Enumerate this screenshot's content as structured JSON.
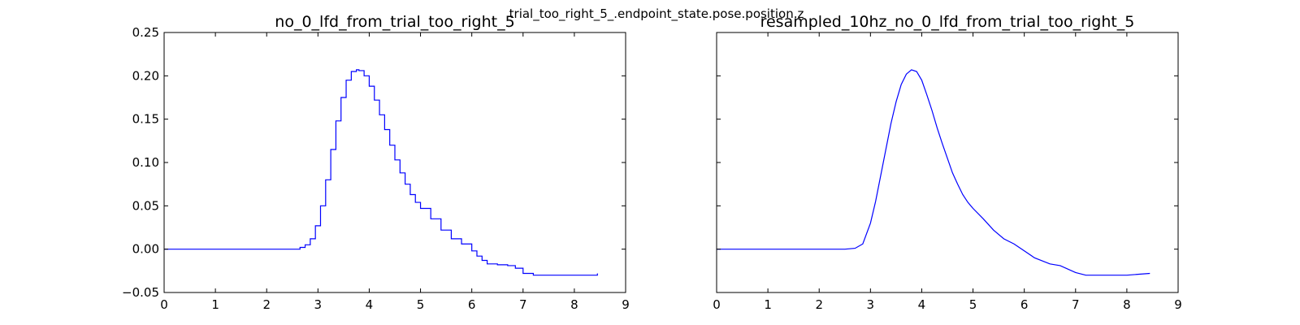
{
  "figure": {
    "suptitle": "trial_too_right_5_.endpoint_state.pose.position.z"
  },
  "chart_data": [
    {
      "type": "line",
      "title": "no_0_lfd_from_trial_too_right_5",
      "xlabel": "",
      "ylabel": "",
      "xlim": [
        0,
        9
      ],
      "ylim": [
        -0.05,
        0.25
      ],
      "xticks": [
        "0",
        "1",
        "2",
        "3",
        "4",
        "5",
        "6",
        "7",
        "8",
        "9"
      ],
      "yticks": [
        "−0.05",
        "0.00",
        "0.05",
        "0.10",
        "0.15",
        "0.20",
        "0.25"
      ],
      "show_yticklabels": true,
      "step": true,
      "grid": false,
      "series": [
        {
          "color": "#0000ff",
          "x": [
            0.0,
            0.5,
            1.0,
            1.5,
            2.0,
            2.3,
            2.5,
            2.65,
            2.75,
            2.85,
            2.95,
            3.05,
            3.15,
            3.25,
            3.35,
            3.45,
            3.55,
            3.65,
            3.75,
            3.8,
            3.9,
            4.0,
            4.1,
            4.2,
            4.3,
            4.4,
            4.5,
            4.6,
            4.7,
            4.8,
            4.9,
            5.0,
            5.2,
            5.4,
            5.6,
            5.8,
            6.0,
            6.1,
            6.2,
            6.3,
            6.5,
            6.7,
            6.85,
            7.0,
            7.2,
            7.5,
            8.0,
            8.45
          ],
          "y": [
            0.0,
            0.0,
            0.0,
            0.0,
            0.0,
            0.0,
            0.0,
            0.002,
            0.005,
            0.012,
            0.027,
            0.05,
            0.08,
            0.115,
            0.148,
            0.175,
            0.195,
            0.205,
            0.207,
            0.206,
            0.2,
            0.188,
            0.172,
            0.155,
            0.138,
            0.12,
            0.103,
            0.088,
            0.075,
            0.063,
            0.054,
            0.047,
            0.035,
            0.022,
            0.012,
            0.006,
            -0.002,
            -0.008,
            -0.013,
            -0.017,
            -0.018,
            -0.019,
            -0.022,
            -0.028,
            -0.03,
            -0.03,
            -0.03,
            -0.028
          ]
        }
      ]
    },
    {
      "type": "line",
      "title": "resampled_10hz_no_0_lfd_from_trial_too_right_5",
      "xlabel": "",
      "ylabel": "",
      "xlim": [
        0,
        9
      ],
      "ylim": [
        -0.05,
        0.25
      ],
      "xticks": [
        "0",
        "1",
        "2",
        "3",
        "4",
        "5",
        "6",
        "7",
        "8",
        "9"
      ],
      "yticks": [
        "−0.05",
        "0.00",
        "0.05",
        "0.10",
        "0.15",
        "0.20",
        "0.25"
      ],
      "show_yticklabels": false,
      "step": false,
      "grid": false,
      "series": [
        {
          "color": "#0000ff",
          "x": [
            0.0,
            0.5,
            1.0,
            1.5,
            2.0,
            2.3,
            2.5,
            2.7,
            2.85,
            3.0,
            3.1,
            3.2,
            3.3,
            3.4,
            3.5,
            3.6,
            3.7,
            3.8,
            3.9,
            4.0,
            4.1,
            4.2,
            4.3,
            4.4,
            4.5,
            4.6,
            4.7,
            4.8,
            4.9,
            5.0,
            5.2,
            5.4,
            5.6,
            5.8,
            6.0,
            6.2,
            6.5,
            6.7,
            7.0,
            7.2,
            7.5,
            8.0,
            8.45
          ],
          "y": [
            0.0,
            0.0,
            0.0,
            0.0,
            0.0,
            0.0,
            0.0,
            0.001,
            0.006,
            0.03,
            0.055,
            0.085,
            0.115,
            0.145,
            0.17,
            0.19,
            0.202,
            0.207,
            0.205,
            0.195,
            0.178,
            0.16,
            0.14,
            0.122,
            0.105,
            0.088,
            0.075,
            0.063,
            0.054,
            0.047,
            0.035,
            0.022,
            0.012,
            0.006,
            -0.002,
            -0.01,
            -0.017,
            -0.019,
            -0.027,
            -0.03,
            -0.03,
            -0.03,
            -0.028
          ]
        }
      ]
    }
  ]
}
